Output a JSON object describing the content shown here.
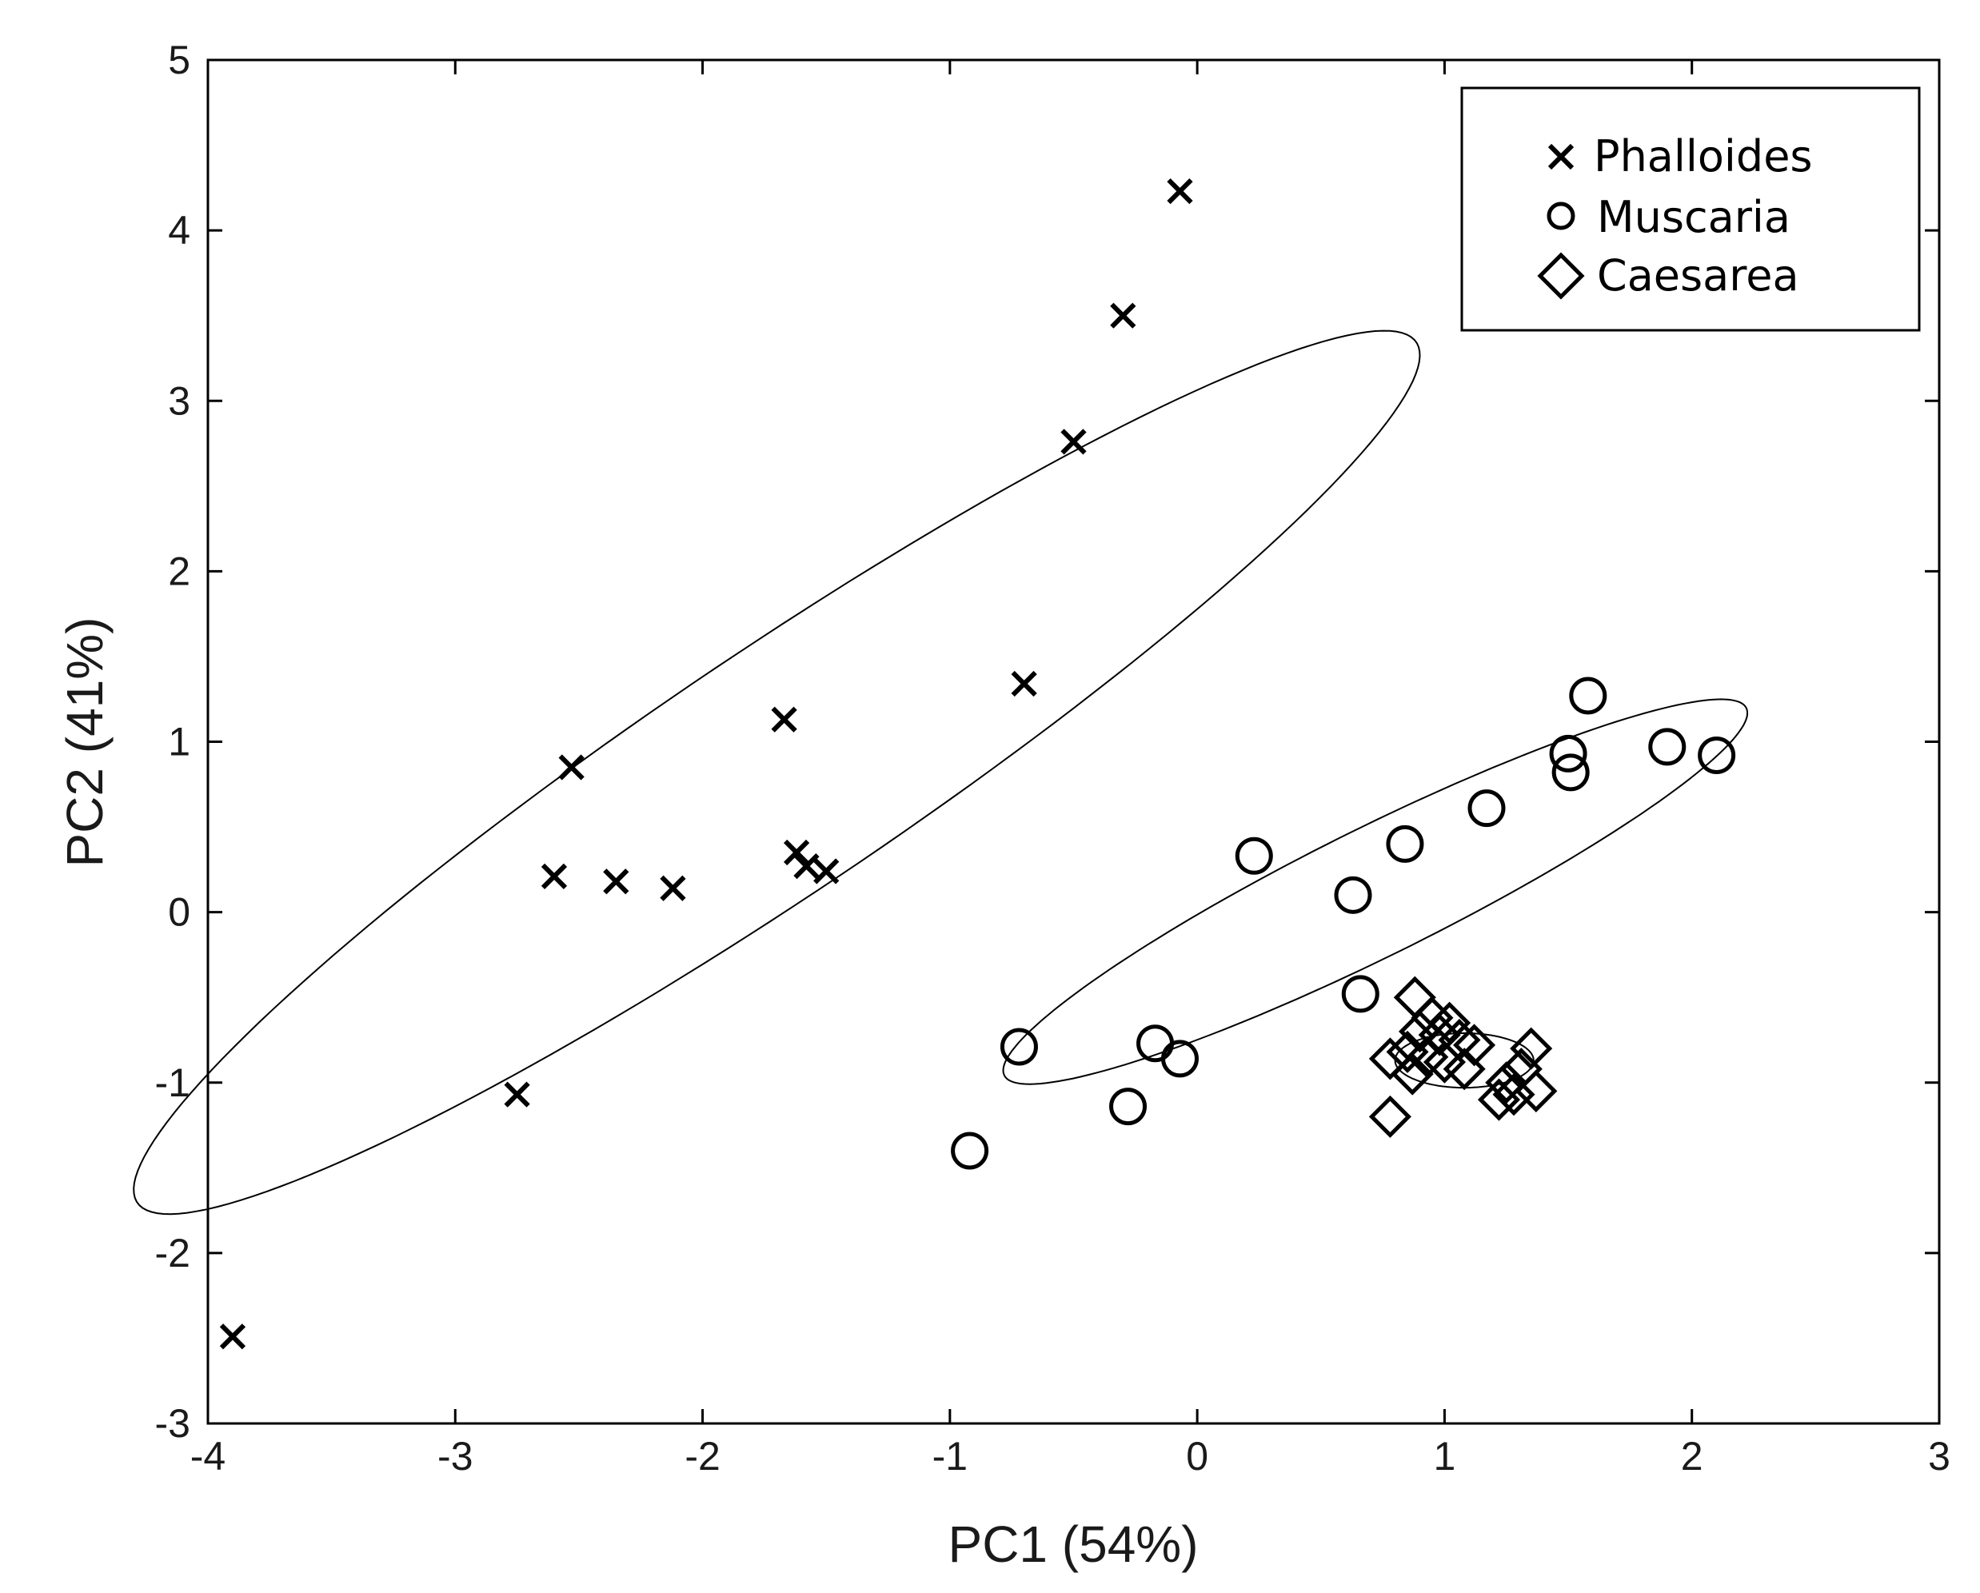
{
  "chart_data": {
    "type": "scatter",
    "title": "",
    "xlabel": "PC1 (54%)",
    "ylabel": "PC2 (41%)",
    "xlim": [
      -4,
      3
    ],
    "ylim": [
      -3,
      5
    ],
    "xticks": [
      -4,
      -3,
      -2,
      -1,
      0,
      1,
      2,
      3
    ],
    "yticks": [
      -3,
      -2,
      -1,
      0,
      1,
      2,
      3,
      4,
      5
    ],
    "grid": false,
    "legend_position": "top-right",
    "series": [
      {
        "name": "Phalloides",
        "marker": "x",
        "points": [
          [
            -0.07,
            4.23
          ],
          [
            -0.3,
            3.5
          ],
          [
            -0.5,
            2.76
          ],
          [
            -0.7,
            1.34
          ],
          [
            -1.67,
            1.13
          ],
          [
            -2.53,
            0.85
          ],
          [
            -1.62,
            0.35
          ],
          [
            -1.58,
            0.27
          ],
          [
            -1.5,
            0.24
          ],
          [
            -2.6,
            0.21
          ],
          [
            -2.35,
            0.18
          ],
          [
            -2.12,
            0.14
          ],
          [
            -2.75,
            -1.07
          ],
          [
            -3.9,
            -2.49
          ]
        ]
      },
      {
        "name": "Muscaria",
        "marker": "o",
        "points": [
          [
            1.58,
            1.27
          ],
          [
            1.9,
            0.97
          ],
          [
            2.1,
            0.92
          ],
          [
            1.5,
            0.93
          ],
          [
            1.51,
            0.82
          ],
          [
            1.17,
            0.61
          ],
          [
            0.84,
            0.4
          ],
          [
            0.23,
            0.33
          ],
          [
            0.63,
            0.1
          ],
          [
            0.66,
            -0.48
          ],
          [
            -0.72,
            -0.79
          ],
          [
            -0.17,
            -0.77
          ],
          [
            -0.07,
            -0.86
          ],
          [
            -0.28,
            -1.14
          ],
          [
            -0.92,
            -1.4
          ]
        ]
      },
      {
        "name": "Caesarea",
        "marker": "diamond",
        "points": [
          [
            0.88,
            -0.5
          ],
          [
            0.95,
            -0.62
          ],
          [
            1.02,
            -0.65
          ],
          [
            0.9,
            -0.7
          ],
          [
            0.98,
            -0.72
          ],
          [
            1.06,
            -0.75
          ],
          [
            1.12,
            -0.78
          ],
          [
            0.85,
            -0.82
          ],
          [
            0.93,
            -0.85
          ],
          [
            1.0,
            -0.88
          ],
          [
            0.78,
            -0.86
          ],
          [
            1.08,
            -0.92
          ],
          [
            0.87,
            -0.95
          ],
          [
            1.35,
            -0.8
          ],
          [
            1.31,
            -0.92
          ],
          [
            1.25,
            -1.0
          ],
          [
            1.28,
            -1.07
          ],
          [
            1.37,
            -1.05
          ],
          [
            1.22,
            -1.1
          ],
          [
            0.78,
            -1.2
          ]
        ]
      }
    ],
    "ellipses": [
      {
        "series": "Phalloides",
        "center": [
          -1.7,
          0.82
        ],
        "semi_major": 3.62,
        "semi_minor": 0.61,
        "angle_deg": 44.9
      },
      {
        "series": "Muscaria",
        "center": [
          0.72,
          0.12
        ],
        "semi_major": 1.85,
        "semi_minor": 0.34,
        "angle_deg": 36.3
      },
      {
        "series": "Caesarea",
        "center": [
          1.08,
          -0.87
        ],
        "semi_major": 0.28,
        "semi_minor": 0.16,
        "angle_deg": 0
      }
    ]
  }
}
